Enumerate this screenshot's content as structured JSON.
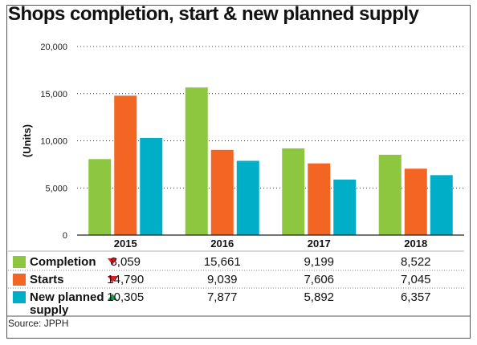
{
  "title": "Shops completion, start & new planned supply",
  "source": "Source: JPPH",
  "colors": {
    "completion": "#8dc63f",
    "starts": "#f26522",
    "new_planned": "#00aec7",
    "arrow_down": "#e31e24",
    "arrow_up": "#1a9c4a"
  },
  "chart_data": {
    "type": "bar",
    "title": "Shops completion, start & new planned supply",
    "ylabel": "(Units)",
    "xlabel": "",
    "ylim": [
      0,
      20000
    ],
    "yticks": [
      "0",
      "5,000",
      "10,000",
      "15,000",
      "20,000"
    ],
    "categories": [
      "2015",
      "2016",
      "2017",
      "2018"
    ],
    "grid": "horizontal dotted",
    "series": [
      {
        "name": "Completion",
        "color": "#8dc63f",
        "trend": "down",
        "trend_color": "#e31e24",
        "values": [
          8059,
          15661,
          9199,
          8522
        ],
        "labels": [
          "8,059",
          "15,661",
          "9,199",
          "8,522"
        ]
      },
      {
        "name": "Starts",
        "color": "#f26522",
        "trend": "down",
        "trend_color": "#e31e24",
        "values": [
          14790,
          9039,
          7606,
          7045
        ],
        "labels": [
          "14,790",
          "9,039",
          "7,606",
          "7,045"
        ]
      },
      {
        "name": "New planned supply",
        "name_lines": [
          "New planned",
          "supply"
        ],
        "color": "#00aec7",
        "trend": "up",
        "trend_color": "#1a9c4a",
        "values": [
          10305,
          7877,
          5892,
          6357
        ],
        "labels": [
          "10,305",
          "7,877",
          "5,892",
          "6,357"
        ]
      }
    ]
  }
}
